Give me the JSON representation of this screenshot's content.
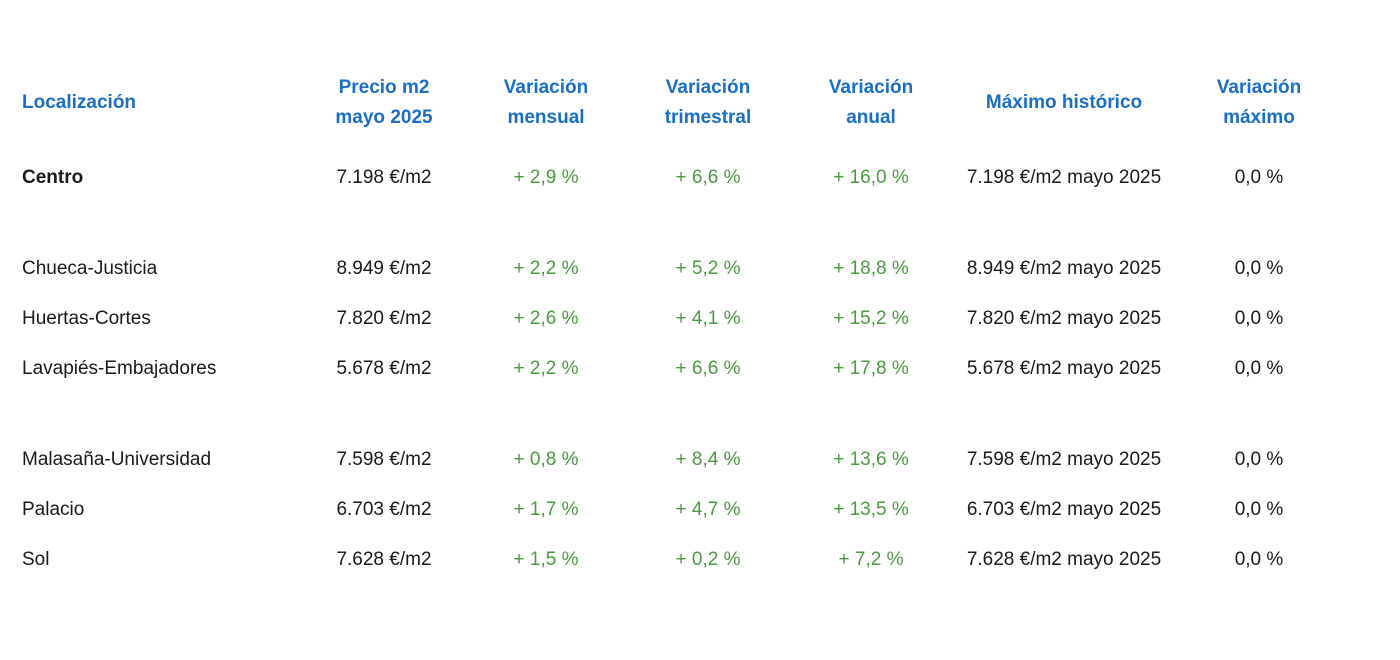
{
  "colors": {
    "header": "#1a6fc4",
    "positive": "#4a9a3f",
    "text": "#1a1a1a"
  },
  "headers": [
    {
      "line1": "Localización",
      "line2": ""
    },
    {
      "line1": "Precio m2",
      "line2": "mayo 2025"
    },
    {
      "line1": "Variación",
      "line2": "mensual"
    },
    {
      "line1": "Variación",
      "line2": "trimestral"
    },
    {
      "line1": "Variación",
      "line2": "anual"
    },
    {
      "line1": "Máximo histórico",
      "line2": ""
    },
    {
      "line1": "Variación",
      "line2": "máximo"
    }
  ],
  "rows": [
    {
      "name": "Centro",
      "price": "7.198 €/m2",
      "monthly": "+ 2,9 %",
      "quarterly": "+ 6,6 %",
      "annual": "+ 16,0 %",
      "max": "7.198 €/m2 mayo 2025",
      "max_var": "0,0 %"
    },
    {
      "name": "Chueca-Justicia",
      "price": "8.949 €/m2",
      "monthly": "+ 2,2 %",
      "quarterly": "+ 5,2 %",
      "annual": "+ 18,8 %",
      "max": "8.949 €/m2 mayo 2025",
      "max_var": "0,0 %"
    },
    {
      "name": "Huertas-Cortes",
      "price": "7.820 €/m2",
      "monthly": "+ 2,6 %",
      "quarterly": "+ 4,1 %",
      "annual": "+ 15,2 %",
      "max": "7.820 €/m2 mayo 2025",
      "max_var": "0,0 %"
    },
    {
      "name": "Lavapiés-Embajadores",
      "price": "5.678 €/m2",
      "monthly": "+ 2,2 %",
      "quarterly": "+ 6,6 %",
      "annual": "+ 17,8 %",
      "max": "5.678 €/m2 mayo 2025",
      "max_var": "0,0 %"
    },
    {
      "name": "Malasaña-Universidad",
      "price": "7.598 €/m2",
      "monthly": "+ 0,8 %",
      "quarterly": "+ 8,4 %",
      "annual": "+ 13,6 %",
      "max": "7.598 €/m2 mayo 2025",
      "max_var": "0,0 %"
    },
    {
      "name": "Palacio",
      "price": "6.703 €/m2",
      "monthly": "+ 1,7 %",
      "quarterly": "+ 4,7 %",
      "annual": "+ 13,5 %",
      "max": "6.703 €/m2 mayo 2025",
      "max_var": "0,0 %"
    },
    {
      "name": "Sol",
      "price": "7.628 €/m2",
      "monthly": "+ 1,5 %",
      "quarterly": "+ 0,2 %",
      "annual": "+ 7,2 %",
      "max": "7.628 €/m2 mayo 2025",
      "max_var": "0,0 %"
    }
  ]
}
